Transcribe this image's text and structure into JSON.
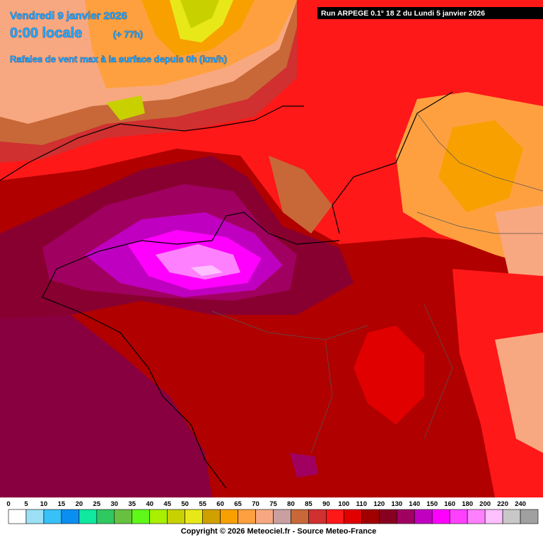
{
  "header": {
    "date": "Vendredi 9 janvier 2026",
    "time": "0:00 locale",
    "lead": "(+ 77h)",
    "subtitle": "Rafales de vent max à la surface depuis 0h (km/h)"
  },
  "run": "Run ARPEGE 0.1° 18 Z du Lundi 5 janvier 2026",
  "legend": {
    "ticks": [
      0,
      5,
      10,
      15,
      20,
      25,
      30,
      35,
      40,
      45,
      50,
      55,
      60,
      65,
      70,
      75,
      80,
      85,
      90,
      100,
      110,
      120,
      130,
      140,
      150,
      160,
      180,
      200,
      220,
      240
    ],
    "colors": [
      "#ffffff",
      "#9be0f5",
      "#38c0f8",
      "#0a8ff0",
      "#10e8a0",
      "#30c860",
      "#68c040",
      "#60f818",
      "#a8f000",
      "#c8d000",
      "#e8e818",
      "#d0a000",
      "#f8a000",
      "#ffa040",
      "#f8a880",
      "#c8a0a0",
      "#c86838",
      "#d03030",
      "#ff1818",
      "#e00000",
      "#a00000",
      "#880020",
      "#a00060",
      "#c000c0",
      "#ff00ff",
      "#ff40ff",
      "#ff80ff",
      "#ffc0ff",
      "#c8c8c8",
      "#a0a0a0"
    ]
  },
  "footer": "Copyright © 2026 Meteociel.fr - Source Meteo-France"
}
